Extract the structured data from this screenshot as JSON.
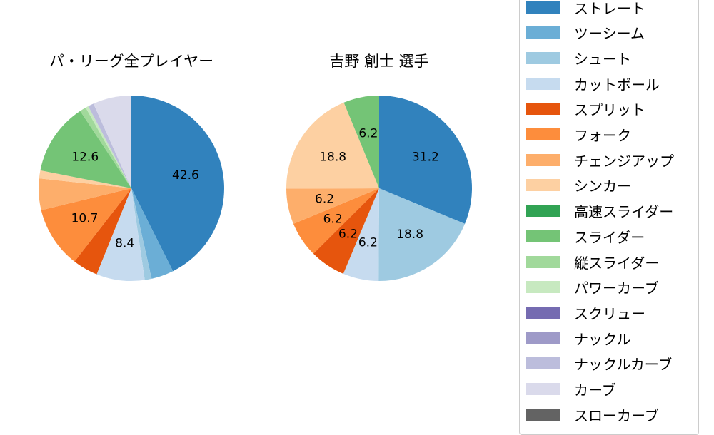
{
  "chart_data": [
    {
      "type": "pie",
      "title": "パ・リーグ全プレイヤー",
      "center": [
        184,
        264
      ],
      "radius": 130,
      "start_angle": "top, clockwise",
      "slices": [
        {
          "label": "ストレート",
          "value": 42.6,
          "show_label": true
        },
        {
          "label": "ツーシーム",
          "value": 3.9,
          "show_label": false
        },
        {
          "label": "シュート",
          "value": 1.2,
          "show_label": false
        },
        {
          "label": "カットボール",
          "value": 8.4,
          "show_label": true
        },
        {
          "label": "スプリット",
          "value": 4.4,
          "show_label": false
        },
        {
          "label": "フォーク",
          "value": 10.7,
          "show_label": true
        },
        {
          "label": "チェンジアップ",
          "value": 5.5,
          "show_label": false
        },
        {
          "label": "シンカー",
          "value": 1.4,
          "show_label": false
        },
        {
          "label": "スライダー",
          "value": 12.6,
          "show_label": true
        },
        {
          "label": "縦スライダー",
          "value": 1.1,
          "show_label": false
        },
        {
          "label": "パワーカーブ",
          "value": 0.5,
          "show_label": false
        },
        {
          "label": "ナックルカーブ",
          "value": 1.0,
          "show_label": false
        },
        {
          "label": "カーブ",
          "value": 6.7,
          "show_label": false
        }
      ]
    },
    {
      "type": "pie",
      "title": "吉野 創士  選手",
      "center": [
        531,
        264
      ],
      "radius": 130,
      "start_angle": "top, clockwise",
      "slices": [
        {
          "label": "ストレート",
          "value": 31.2,
          "show_label": true
        },
        {
          "label": "シュート",
          "value": 18.8,
          "show_label": true
        },
        {
          "label": "カットボール",
          "value": 6.2,
          "show_label": true
        },
        {
          "label": "スプリット",
          "value": 6.2,
          "show_label": true
        },
        {
          "label": "フォーク",
          "value": 6.2,
          "show_label": true
        },
        {
          "label": "チェンジアップ",
          "value": 6.2,
          "show_label": true
        },
        {
          "label": "シンカー",
          "value": 18.8,
          "show_label": true
        },
        {
          "label": "スライダー",
          "value": 6.2,
          "show_label": true
        }
      ]
    }
  ],
  "legend": {
    "position": "right",
    "items": [
      {
        "label": "ストレート",
        "color": "#3182bd"
      },
      {
        "label": "ツーシーム",
        "color": "#6baed6"
      },
      {
        "label": "シュート",
        "color": "#9ecae1"
      },
      {
        "label": "カットボール",
        "color": "#c6dbef"
      },
      {
        "label": "スプリット",
        "color": "#e6550d"
      },
      {
        "label": "フォーク",
        "color": "#fd8d3c"
      },
      {
        "label": "チェンジアップ",
        "color": "#fdae6b"
      },
      {
        "label": "シンカー",
        "color": "#fdd0a2"
      },
      {
        "label": "高速スライダー",
        "color": "#31a354"
      },
      {
        "label": "スライダー",
        "color": "#74c476"
      },
      {
        "label": "縦スライダー",
        "color": "#a1d99b"
      },
      {
        "label": "パワーカーブ",
        "color": "#c7e9c0"
      },
      {
        "label": "スクリュー",
        "color": "#756bb1"
      },
      {
        "label": "ナックル",
        "color": "#9e9ac8"
      },
      {
        "label": "ナックルカーブ",
        "color": "#bcbddc"
      },
      {
        "label": "カーブ",
        "color": "#dadaeb"
      },
      {
        "label": "スローカーブ",
        "color": "#636363"
      }
    ]
  }
}
